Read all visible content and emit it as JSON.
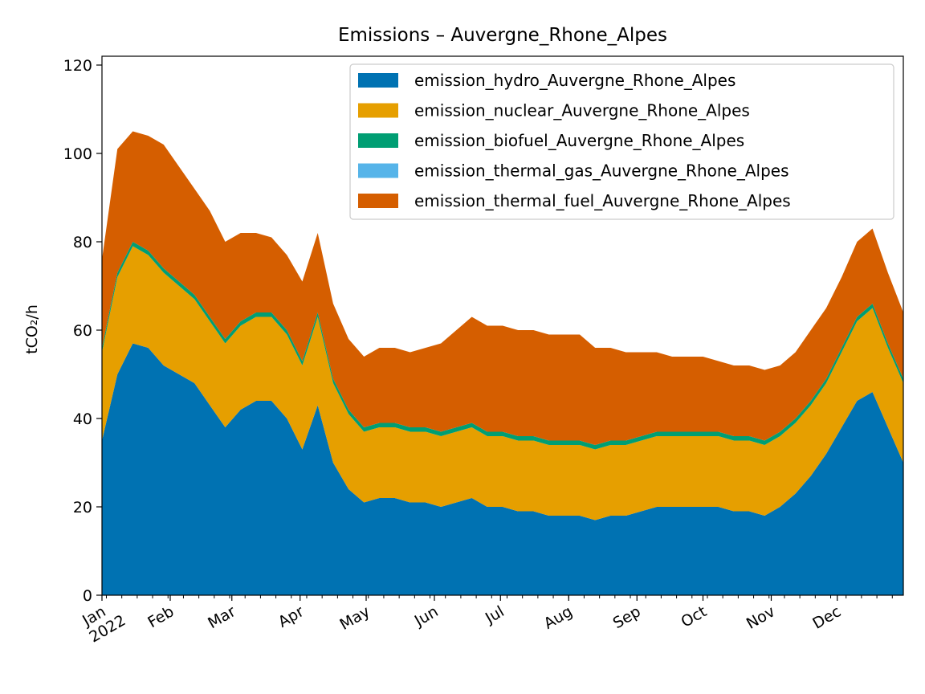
{
  "chart_data": {
    "type": "area",
    "stacked": true,
    "title": "Emissions – Auvergne_Rhone_Alpes",
    "ylabel": "tCO₂/h",
    "xlabel": "",
    "x_range": [
      "2022-01-01",
      "2022-12-31"
    ],
    "ylim": [
      0,
      122
    ],
    "y_ticks": [
      0,
      20,
      40,
      60,
      80,
      100,
      120
    ],
    "x_ticks": [
      {
        "date": "2022-01-01",
        "label": "Jan",
        "sublabel": "2022"
      },
      {
        "date": "2022-02-01",
        "label": "Feb"
      },
      {
        "date": "2022-03-01",
        "label": "Mar"
      },
      {
        "date": "2022-04-01",
        "label": "Apr"
      },
      {
        "date": "2022-05-01",
        "label": "May"
      },
      {
        "date": "2022-06-01",
        "label": "Jun"
      },
      {
        "date": "2022-07-01",
        "label": "Jul"
      },
      {
        "date": "2022-08-01",
        "label": "Aug"
      },
      {
        "date": "2022-09-01",
        "label": "Sep"
      },
      {
        "date": "2022-10-01",
        "label": "Oct"
      },
      {
        "date": "2022-11-01",
        "label": "Nov"
      },
      {
        "date": "2022-12-01",
        "label": "Dec"
      }
    ],
    "grid": false,
    "legend_position": "top-right",
    "x": [
      "2022-01-01",
      "2022-01-08",
      "2022-01-15",
      "2022-01-22",
      "2022-01-29",
      "2022-02-05",
      "2022-02-12",
      "2022-02-19",
      "2022-02-26",
      "2022-03-05",
      "2022-03-12",
      "2022-03-19",
      "2022-03-26",
      "2022-04-02",
      "2022-04-09",
      "2022-04-16",
      "2022-04-23",
      "2022-04-30",
      "2022-05-07",
      "2022-05-14",
      "2022-05-21",
      "2022-05-28",
      "2022-06-04",
      "2022-06-11",
      "2022-06-18",
      "2022-06-25",
      "2022-07-02",
      "2022-07-09",
      "2022-07-16",
      "2022-07-23",
      "2022-07-30",
      "2022-08-06",
      "2022-08-13",
      "2022-08-20",
      "2022-08-27",
      "2022-09-03",
      "2022-09-10",
      "2022-09-17",
      "2022-09-24",
      "2022-10-01",
      "2022-10-08",
      "2022-10-15",
      "2022-10-22",
      "2022-10-29",
      "2022-11-05",
      "2022-11-12",
      "2022-11-19",
      "2022-11-26",
      "2022-12-03",
      "2022-12-10",
      "2022-12-17",
      "2022-12-24",
      "2022-12-31"
    ],
    "series": [
      {
        "name": "emission_hydro_Auvergne_Rhone_Alpes",
        "color": "#0072b2",
        "values": [
          35,
          50,
          57,
          56,
          52,
          50,
          48,
          43,
          38,
          42,
          44,
          44,
          40,
          33,
          43,
          30,
          24,
          21,
          22,
          22,
          21,
          21,
          20,
          21,
          22,
          20,
          20,
          19,
          19,
          18,
          18,
          18,
          17,
          18,
          18,
          19,
          20,
          20,
          20,
          20,
          20,
          19,
          19,
          18,
          20,
          23,
          27,
          32,
          38,
          44,
          46,
          38,
          30
        ]
      },
      {
        "name": "emission_nuclear_Auvergne_Rhone_Alpes",
        "color": "#e69f00",
        "values": [
          20,
          22,
          22,
          21,
          21,
          20,
          19,
          19,
          19,
          19,
          19,
          19,
          19,
          19,
          20,
          18,
          17,
          16,
          16,
          16,
          16,
          16,
          16,
          16,
          16,
          16,
          16,
          16,
          16,
          16,
          16,
          16,
          16,
          16,
          16,
          16,
          16,
          16,
          16,
          16,
          16,
          16,
          16,
          16,
          16,
          16,
          16,
          16,
          17,
          18,
          19,
          18,
          18
        ]
      },
      {
        "name": "emission_biofuel_Auvergne_Rhone_Alpes",
        "color": "#009e73",
        "values": [
          1,
          1,
          1,
          1,
          1,
          1,
          1,
          1,
          1,
          1,
          1,
          1,
          1,
          1,
          1,
          1,
          1,
          1,
          1,
          1,
          1,
          1,
          1,
          1,
          1,
          1,
          1,
          1,
          1,
          1,
          1,
          1,
          1,
          1,
          1,
          1,
          1,
          1,
          1,
          1,
          1,
          1,
          1,
          1,
          1,
          1,
          1,
          1,
          1,
          1,
          1,
          1,
          1
        ]
      },
      {
        "name": "emission_thermal_gas_Auvergne_Rhone_Alpes",
        "color": "#56b4e9",
        "values": [
          0,
          0,
          0,
          0,
          0,
          0,
          0,
          0,
          0,
          0,
          0,
          0,
          0,
          0,
          0,
          0,
          0,
          0,
          0,
          0,
          0,
          0,
          0,
          0,
          0,
          0,
          0,
          0,
          0,
          0,
          0,
          0,
          0,
          0,
          0,
          0,
          0,
          0,
          0,
          0,
          0,
          0,
          0,
          0,
          0,
          0,
          0,
          0,
          0,
          0,
          0,
          0,
          0
        ]
      },
      {
        "name": "emission_thermal_fuel_Auvergne_Rhone_Alpes",
        "color": "#d55e00",
        "values": [
          20,
          28,
          25,
          26,
          28,
          26,
          24,
          24,
          22,
          20,
          18,
          17,
          17,
          18,
          18,
          17,
          16,
          16,
          17,
          17,
          17,
          18,
          20,
          22,
          24,
          24,
          24,
          24,
          24,
          24,
          24,
          24,
          22,
          21,
          20,
          19,
          18,
          17,
          17,
          17,
          16,
          16,
          16,
          16,
          15,
          15,
          16,
          16,
          16,
          17,
          17,
          16,
          15
        ]
      }
    ]
  }
}
